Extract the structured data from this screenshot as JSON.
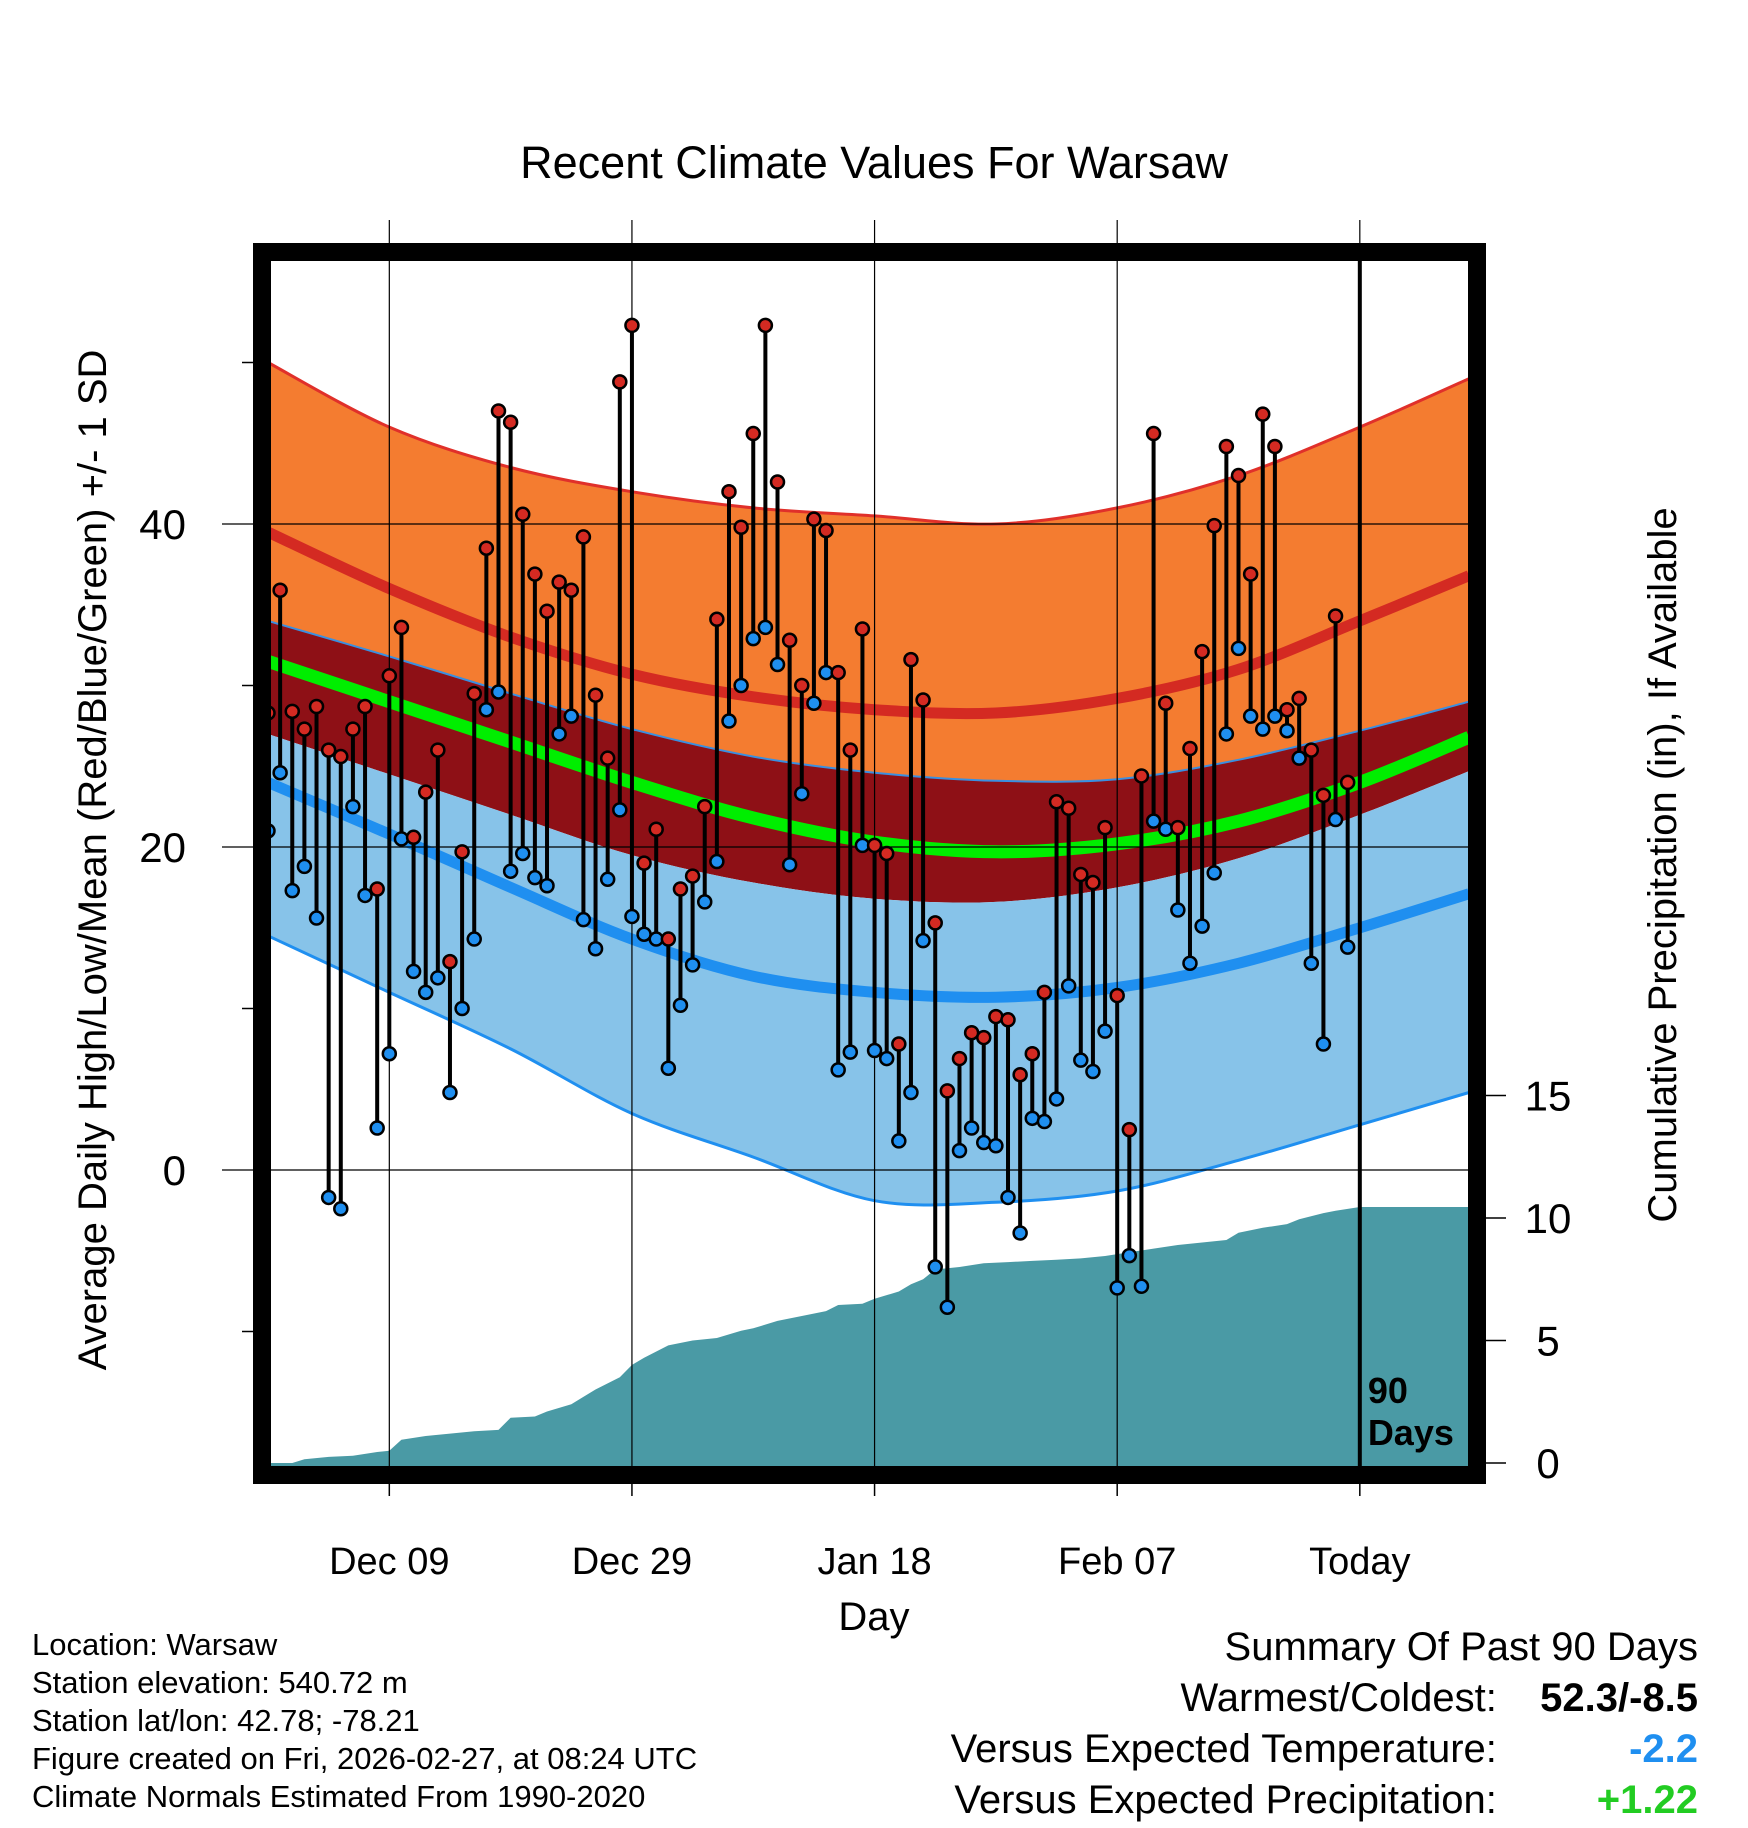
{
  "chart_data": {
    "type": "line",
    "title": "Recent Climate Values For Warsaw",
    "xlabel": "Day",
    "ylabel": "Average Daily High/Low/Mean (Red/Blue/Green) +/- 1 SD",
    "y2label": "Cumulative Precipitation (in), If Available",
    "xlim": [
      1,
      100
    ],
    "ylim": [
      -18,
      57
    ],
    "y2lim": [
      0,
      15
    ],
    "xticks": [
      {
        "day": 11,
        "label": "Dec 09"
      },
      {
        "day": 31,
        "label": "Dec 29"
      },
      {
        "day": 51,
        "label": "Jan 18"
      },
      {
        "day": 71,
        "label": "Feb 07"
      },
      {
        "day": 91,
        "label": "Today"
      }
    ],
    "yticks": [
      0,
      20,
      40
    ],
    "y2ticks": [
      0,
      5,
      10,
      15
    ],
    "today_marker": {
      "day": 91,
      "label_line1": "90",
      "label_line2": "Days"
    },
    "colors": {
      "high_band": "#f47c30",
      "high_mean": "#d42a22",
      "low_band": "#87c3e9",
      "low_mean": "#1f8ff0",
      "mean_band": "#8e1016",
      "mean_line": "#00ee00",
      "precip": "#4a9aa5",
      "high_marker": "#d42a22",
      "low_marker": "#1f8ff0"
    },
    "normals": {
      "days": [
        1,
        11,
        21,
        31,
        41,
        51,
        61,
        71,
        81,
        91,
        100
      ],
      "high_upper": [
        50,
        46,
        43.5,
        42,
        41,
        40.5,
        40,
        41,
        43,
        46,
        49
      ],
      "high_mean": [
        39.5,
        36,
        33,
        30.7,
        29.3,
        28.5,
        28.3,
        29.2,
        31,
        34,
        36.8
      ],
      "mean_upper": [
        34,
        31.8,
        29.5,
        27.3,
        25.6,
        24.6,
        24.1,
        24.2,
        25.4,
        27.2,
        29
      ],
      "mean": [
        31.5,
        29,
        26.5,
        24,
        21.8,
        20.3,
        19.7,
        20.2,
        21.6,
        24,
        26.8
      ],
      "mean_lower": [
        27,
        24.5,
        22,
        19.5,
        17.8,
        16.8,
        16.6,
        17.5,
        19.3,
        22,
        24.7
      ],
      "low_mean": [
        24,
        20.8,
        17.5,
        14.3,
        12,
        11,
        10.7,
        11.3,
        12.8,
        15,
        17.1
      ],
      "low_lower": [
        14.5,
        11,
        7.5,
        3.5,
        0.8,
        -1.9,
        -2,
        -1.3,
        0.6,
        2.8,
        4.8
      ]
    },
    "series": [
      {
        "name": "Daily High",
        "values": [
          28.3,
          35.9,
          28.4,
          27.3,
          28.7,
          26,
          25.6,
          27.3,
          28.7,
          17.4,
          30.6,
          33.6,
          20.6,
          23.4,
          26,
          12.9,
          19.7,
          29.5,
          38.5,
          47,
          46.3,
          40.6,
          36.9,
          34.6,
          36.4,
          35.9,
          39.2,
          29.4,
          25.5,
          48.8,
          52.3,
          19,
          21.1,
          14.3,
          17.4,
          18.2,
          22.5,
          34.1,
          42,
          39.8,
          45.6,
          52.3,
          42.6,
          32.8,
          30,
          40.3,
          39.6,
          30.8,
          26,
          33.5,
          20.1,
          19.6,
          7.8,
          31.6,
          29.1,
          15.3,
          4.9,
          6.9,
          8.5,
          8.2,
          9.5,
          9.3,
          5.9,
          7.2,
          11,
          22.8,
          22.4,
          18.3,
          17.8,
          21.2,
          10.8,
          2.5,
          24.4,
          45.6,
          28.9,
          21.2,
          26.1,
          32.1,
          39.9,
          44.8,
          43,
          36.9,
          46.8,
          44.8,
          28.5,
          29.2,
          26,
          23.2,
          34.3,
          24
        ],
        "days": [
          1,
          2,
          3,
          4,
          5,
          6,
          7,
          8,
          9,
          10,
          11,
          12,
          13,
          14,
          15,
          16,
          17,
          18,
          19,
          20,
          21,
          22,
          23,
          24,
          25,
          26,
          27,
          28,
          29,
          30,
          31,
          32,
          33,
          34,
          35,
          36,
          37,
          38,
          39,
          40,
          41,
          42,
          43,
          44,
          45,
          46,
          47,
          48,
          49,
          50,
          51,
          52,
          53,
          54,
          55,
          56,
          57,
          58,
          59,
          60,
          61,
          62,
          63,
          64,
          65,
          66,
          67,
          68,
          69,
          70,
          71,
          72,
          73,
          74,
          75,
          76,
          77,
          78,
          79,
          80,
          81,
          82,
          83,
          84,
          85,
          86,
          87,
          88,
          89,
          90
        ]
      },
      {
        "name": "Daily Low",
        "values": [
          21,
          24.6,
          17.3,
          18.8,
          15.6,
          -1.7,
          -2.4,
          22.5,
          17,
          2.6,
          7.2,
          20.5,
          12.3,
          11,
          11.9,
          4.8,
          10,
          14.3,
          28.5,
          29.6,
          18.5,
          19.6,
          18.1,
          17.6,
          27,
          28.1,
          15.5,
          13.7,
          18,
          22.3,
          15.7,
          14.6,
          14.3,
          6.3,
          10.2,
          12.7,
          16.6,
          19.1,
          27.8,
          30,
          32.9,
          33.6,
          31.3,
          18.9,
          23.3,
          28.9,
          30.8,
          6.2,
          7.3,
          20.1,
          7.4,
          6.9,
          1.8,
          4.8,
          14.2,
          -6,
          -8.5,
          1.2,
          2.6,
          1.7,
          1.5,
          -1.7,
          -3.9,
          3.2,
          3,
          4.4,
          11.4,
          6.8,
          6.1,
          8.6,
          -7.3,
          -5.3,
          -7.2,
          21.6,
          21.1,
          16.1,
          12.8,
          15.1,
          18.4,
          27,
          32.3,
          28.1,
          27.3,
          28.1,
          27.2,
          25.5,
          12.8,
          7.8,
          21.7,
          13.8
        ],
        "days": [
          1,
          2,
          3,
          4,
          5,
          6,
          7,
          8,
          9,
          10,
          11,
          12,
          13,
          14,
          15,
          16,
          17,
          18,
          19,
          20,
          21,
          22,
          23,
          24,
          25,
          26,
          27,
          28,
          29,
          30,
          31,
          32,
          33,
          34,
          35,
          36,
          37,
          38,
          39,
          40,
          41,
          42,
          43,
          44,
          45,
          46,
          47,
          48,
          49,
          50,
          51,
          52,
          53,
          54,
          55,
          56,
          57,
          58,
          59,
          60,
          61,
          62,
          63,
          64,
          65,
          66,
          67,
          68,
          69,
          70,
          71,
          72,
          73,
          74,
          75,
          76,
          77,
          78,
          79,
          80,
          81,
          82,
          83,
          84,
          85,
          86,
          87,
          88,
          89,
          90
        ]
      },
      {
        "name": "Cumulative Precipitation",
        "points": [
          [
            1,
            0
          ],
          [
            3,
            0
          ],
          [
            4,
            0.15
          ],
          [
            6,
            0.25
          ],
          [
            8,
            0.3
          ],
          [
            10,
            0.45
          ],
          [
            11,
            0.5
          ],
          [
            12,
            0.95
          ],
          [
            14,
            1.1
          ],
          [
            16,
            1.2
          ],
          [
            18,
            1.3
          ],
          [
            20,
            1.35
          ],
          [
            21,
            1.85
          ],
          [
            23,
            1.9
          ],
          [
            24,
            2.1
          ],
          [
            26,
            2.4
          ],
          [
            28,
            3
          ],
          [
            30,
            3.5
          ],
          [
            31,
            4
          ],
          [
            32,
            4.3
          ],
          [
            34,
            4.8
          ],
          [
            36,
            5
          ],
          [
            38,
            5.1
          ],
          [
            40,
            5.4
          ],
          [
            41,
            5.5
          ],
          [
            43,
            5.8
          ],
          [
            45,
            6
          ],
          [
            47,
            6.2
          ],
          [
            48,
            6.45
          ],
          [
            50,
            6.5
          ],
          [
            51,
            6.7
          ],
          [
            53,
            7
          ],
          [
            54,
            7.3
          ],
          [
            55,
            7.5
          ],
          [
            56,
            7.9
          ],
          [
            58,
            8
          ],
          [
            60,
            8.15
          ],
          [
            62,
            8.2
          ],
          [
            64,
            8.25
          ],
          [
            66,
            8.3
          ],
          [
            68,
            8.35
          ],
          [
            70,
            8.45
          ],
          [
            72,
            8.6
          ],
          [
            74,
            8.75
          ],
          [
            76,
            8.9
          ],
          [
            78,
            9
          ],
          [
            80,
            9.1
          ],
          [
            81,
            9.4
          ],
          [
            83,
            9.6
          ],
          [
            85,
            9.75
          ],
          [
            86,
            9.95
          ],
          [
            88,
            10.2
          ],
          [
            89,
            10.3
          ],
          [
            91,
            10.45
          ],
          [
            100,
            10.45
          ]
        ]
      }
    ]
  },
  "info": {
    "location": "Location: Warsaw",
    "elevation": "Station elevation: 540.72 m",
    "latlon": "Station lat/lon: 42.78; -78.21",
    "created": "Figure created on Fri, 2026-02-27, at 08:24 UTC",
    "normals": "Climate Normals Estimated From 1990-2020"
  },
  "summary": {
    "title": "Summary Of Past 90 Days",
    "warmest_coldest_label": "Warmest/Coldest:",
    "warmest_coldest_value": "52.3/-8.5",
    "temp_label": "Versus Expected Temperature:",
    "temp_value": "-2.2",
    "temp_color": "#1f8ff0",
    "precip_label": "Versus Expected Precipitation:",
    "precip_value": "+1.22",
    "precip_color": "#22cc22"
  }
}
